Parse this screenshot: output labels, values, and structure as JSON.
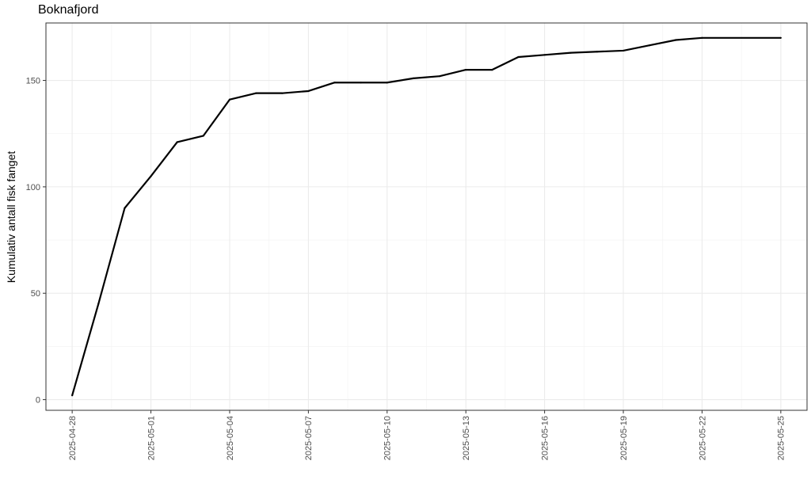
{
  "chart_data": {
    "type": "line",
    "title": "Boknafjord",
    "xlabel": "",
    "ylabel": "Kumulativ antall fisk fanget",
    "x_type": "date",
    "xlim": [
      "2025-04-27",
      "2025-05-26"
    ],
    "ylim": [
      -5,
      177
    ],
    "x_ticks": [
      "2025-04-28",
      "2025-05-01",
      "2025-05-04",
      "2025-05-07",
      "2025-05-10",
      "2025-05-13",
      "2025-05-16",
      "2025-05-19",
      "2025-05-22",
      "2025-05-25"
    ],
    "y_ticks": [
      0,
      50,
      100,
      150
    ],
    "grid": true,
    "series_color": "#000000",
    "series": [
      {
        "x": [
          "2025-04-28",
          "2025-04-29",
          "2025-04-30",
          "2025-05-01",
          "2025-05-02",
          "2025-05-03",
          "2025-05-04",
          "2025-05-05",
          "2025-05-06",
          "2025-05-07",
          "2025-05-08",
          "2025-05-09",
          "2025-05-10",
          "2025-05-11",
          "2025-05-12",
          "2025-05-13",
          "2025-05-14",
          "2025-05-15",
          "2025-05-16",
          "2025-05-17",
          "2025-05-18",
          "2025-05-19",
          "2025-05-20",
          "2025-05-21",
          "2025-05-22",
          "2025-05-25"
        ],
        "y": [
          2,
          45,
          90,
          105,
          121,
          124,
          141,
          144,
          144,
          145,
          149,
          149,
          149,
          151,
          152,
          155,
          155,
          161,
          162,
          163,
          163.5,
          164,
          166.5,
          169,
          170,
          170
        ]
      }
    ]
  }
}
